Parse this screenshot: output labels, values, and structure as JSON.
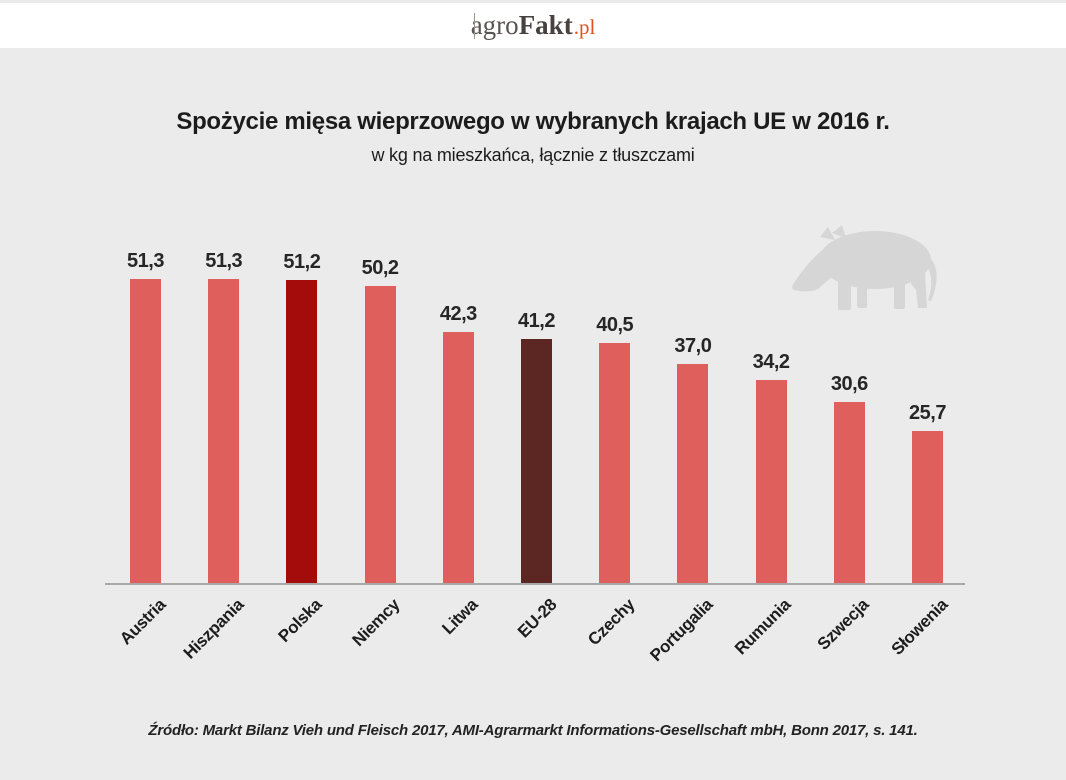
{
  "header": {
    "logo": {
      "prefix": "agro",
      "brand": "Fakt",
      "tld": ".pl",
      "tld_color": "#E0511F"
    }
  },
  "chart_data": {
    "type": "bar",
    "title": "Spożycie mięsa wieprzowego w wybranych krajach UE w 2016 r.",
    "subtitle": "w kg na mieszkańca, łącznie z tłuszczami",
    "categories": [
      "Austria",
      "Hiszpania",
      "Polska",
      "Niemcy",
      "Litwa",
      "EU-28",
      "Czechy",
      "Portugalia",
      "Rumunia",
      "Szwecja",
      "Słowenia"
    ],
    "values": [
      51.3,
      51.3,
      51.2,
      50.2,
      42.3,
      41.2,
      40.5,
      37.0,
      34.2,
      30.6,
      25.7
    ],
    "value_labels": [
      "51,3",
      "51,3",
      "51,2",
      "50,2",
      "42,3",
      "41,2",
      "40,5",
      "37,0",
      "34,2",
      "30,6",
      "25,7"
    ],
    "bar_colors": [
      "#DF5F5C",
      "#DF5F5C",
      "#A40B0B",
      "#DF5F5C",
      "#DF5F5C",
      "#5C2622",
      "#DF5F5C",
      "#DF5F5C",
      "#DF5F5C",
      "#DF5F5C",
      "#DF5F5C"
    ],
    "default_bar_color": "#DF5F5C",
    "highlighted": {
      "Polska": "#A40B0B",
      "EU-28": "#5C2622"
    },
    "ylim": [
      0,
      55
    ],
    "xlabel": "",
    "ylabel": "",
    "grid": false,
    "legend": false,
    "value_label_position": "above-bar",
    "category_label_rotation_deg": -45
  },
  "decoration": {
    "pig_icon_color": "#D6D6D6"
  },
  "source_note": "Źródło: Markt Bilanz Vieh und Fleisch 2017, AMI-Agrarmarkt Informations-Gesellschaft mbH, Bonn 2017, s. 141."
}
